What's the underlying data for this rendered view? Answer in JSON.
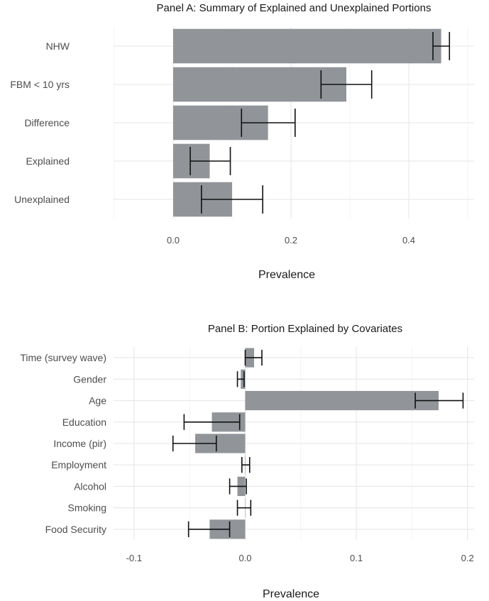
{
  "chart_data": [
    {
      "type": "bar",
      "orientation": "horizontal",
      "title": "Panel A: Summary of Explained and Unexplained Portions",
      "xlabel": "Prevalence",
      "ylabel": "",
      "xlim": [
        -0.1,
        0.5
      ],
      "xticks": [
        0.0,
        0.2,
        0.4
      ],
      "xtick_labels": [
        "0.0",
        "0.2",
        "0.4"
      ],
      "grid": true,
      "categories": [
        "NHW",
        "FBM < 10 yrs",
        "Difference",
        "Explained",
        "Unexplained"
      ],
      "values": [
        0.455,
        0.294,
        0.161,
        0.062,
        0.1
      ],
      "error_low": [
        0.441,
        0.251,
        0.116,
        0.029,
        0.048
      ],
      "error_high": [
        0.469,
        0.337,
        0.207,
        0.097,
        0.152
      ]
    },
    {
      "type": "bar",
      "orientation": "horizontal",
      "title": "Panel B: Portion Explained by Covariates",
      "xlabel": "Prevalence",
      "ylabel": "",
      "xlim": [
        -0.105,
        0.205
      ],
      "xticks": [
        -0.1,
        0.0,
        0.1,
        0.2
      ],
      "xtick_labels": [
        "-0.1",
        "0.0",
        "0.1",
        "0.2"
      ],
      "grid": true,
      "categories": [
        "Time (survey wave)",
        "Gender",
        "Age",
        "Education",
        "Income (pir)",
        "Employment",
        "Alcohol",
        "Smoking",
        "Food Security"
      ],
      "values": [
        0.008,
        -0.004,
        0.174,
        -0.03,
        -0.045,
        0.0,
        -0.007,
        0.0,
        -0.032
      ],
      "error_low": [
        0.0,
        -0.007,
        0.153,
        -0.055,
        -0.065,
        -0.003,
        -0.014,
        -0.007,
        -0.051
      ],
      "error_high": [
        0.015,
        -0.001,
        0.196,
        -0.005,
        -0.026,
        0.004,
        0.001,
        0.005,
        -0.014
      ]
    }
  ]
}
